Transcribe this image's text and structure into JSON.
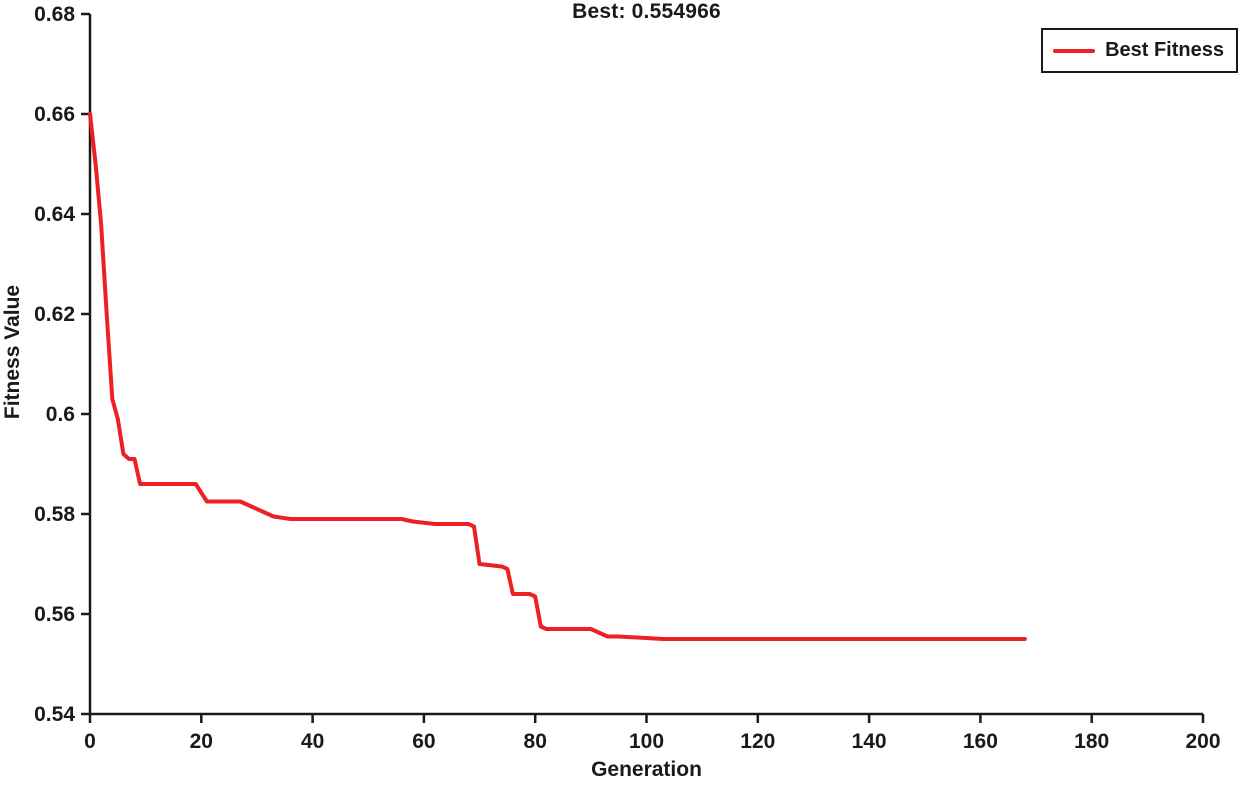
{
  "chart_data": {
    "type": "line",
    "title": "Best: 0.554966",
    "xlabel": "Generation",
    "ylabel": "Fitness Value",
    "xlim": [
      0,
      200
    ],
    "ylim": [
      0.54,
      0.68
    ],
    "xticks": [
      0,
      20,
      40,
      60,
      80,
      100,
      120,
      140,
      160,
      180,
      200
    ],
    "ytick_values": [
      0.54,
      0.56,
      0.58,
      0.6,
      0.62,
      0.64,
      0.66,
      0.68
    ],
    "ytick_labels": [
      "0.54",
      "0.56",
      "0.58",
      "0.6",
      "0.62",
      "0.64",
      "0.66",
      "0.68"
    ],
    "grid": false,
    "best_value_shown_in_title": 0.554966,
    "legend": {
      "position": "top-right",
      "entries": [
        {
          "label": "Best Fitness",
          "color": "#ed2024"
        }
      ]
    },
    "axis_color": "#1a1a1a",
    "series": [
      {
        "name": "Best Fitness",
        "color": "#ed2024",
        "x": [
          0,
          1,
          2,
          3,
          4,
          5,
          6,
          7,
          8,
          9,
          19,
          21,
          27,
          29,
          31,
          33,
          36,
          56,
          58,
          62,
          68,
          69,
          70,
          74,
          75,
          76,
          79,
          80,
          81,
          82,
          90,
          91,
          93,
          95,
          103,
          168
        ],
        "y": [
          0.66,
          0.65,
          0.638,
          0.62,
          0.603,
          0.599,
          0.592,
          0.591,
          0.591,
          0.586,
          0.586,
          0.5825,
          0.5825,
          0.5815,
          0.5805,
          0.5795,
          0.579,
          0.579,
          0.5785,
          0.578,
          0.578,
          0.5775,
          0.57,
          0.5695,
          0.569,
          0.564,
          0.564,
          0.5635,
          0.5575,
          0.557,
          0.557,
          0.5565,
          0.5555,
          0.5555,
          0.555,
          0.555
        ]
      }
    ]
  }
}
